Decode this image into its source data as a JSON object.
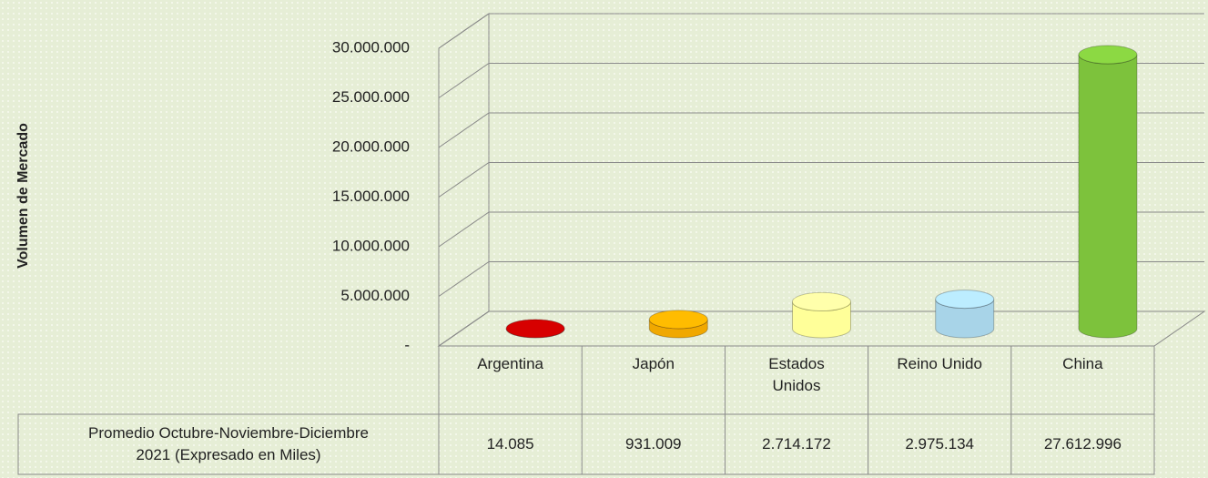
{
  "chart_data": {
    "type": "bar3d",
    "ylabel": "Volumen de Mercado",
    "categories": [
      "Argentina",
      "Japón",
      "Estados Unidos",
      "Reino Unido",
      "China"
    ],
    "series": [
      {
        "name": "Promedio Octubre-Noviembre-Diciembre 2021 (Expresado en Miles)",
        "values": [
          14085,
          931009,
          2714172,
          2975134,
          27612996
        ],
        "value_labels": [
          "14.085",
          "931.009",
          "2.714.172",
          "2.975.134",
          "27.612.996"
        ],
        "colors": [
          "#c00000",
          "#f0a800",
          "#ffff99",
          "#a8d4e8",
          "#7dc23c"
        ]
      }
    ],
    "ylim": [
      0,
      30000000
    ],
    "yticks": [
      {
        "value": 0,
        "label": "-"
      },
      {
        "value": 5000000,
        "label": "5.000.000"
      },
      {
        "value": 10000000,
        "label": "10.000.000"
      },
      {
        "value": 15000000,
        "label": "15.000.000"
      },
      {
        "value": 20000000,
        "label": "20.000.000"
      },
      {
        "value": 25000000,
        "label": "25.000.000"
      },
      {
        "value": 30000000,
        "label": "30.000.000"
      }
    ],
    "grid": true
  }
}
